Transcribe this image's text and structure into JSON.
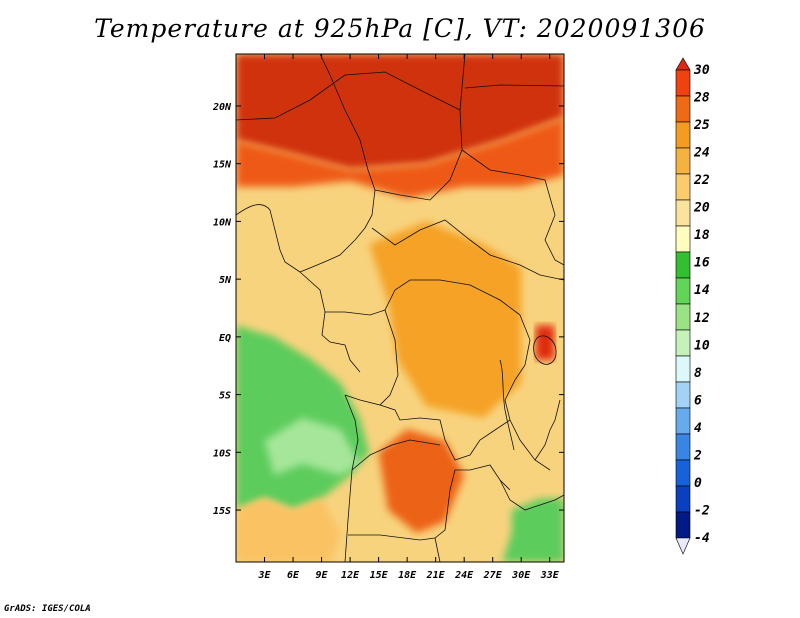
{
  "title": "Temperature at 925hPa [C], VT: 2020091306",
  "credit": "GrADS: IGES/COLA",
  "map": {
    "lon_range": [
      0,
      34.5
    ],
    "lat_range": [
      -19.5,
      24.5
    ],
    "x_ticks": [
      "3E",
      "6E",
      "9E",
      "12E",
      "15E",
      "18E",
      "21E",
      "24E",
      "27E",
      "30E",
      "33E"
    ],
    "y_ticks": [
      "20N",
      "15N",
      "10N",
      "5N",
      "EQ",
      "5S",
      "10S",
      "15S"
    ],
    "fill_regions": [
      {
        "name": "far-north-hot",
        "poly": [
          [
            0,
            24.5
          ],
          [
            34.5,
            24.5
          ],
          [
            34.5,
            19
          ],
          [
            28,
            17
          ],
          [
            20,
            15
          ],
          [
            12,
            14.5
          ],
          [
            5,
            16
          ],
          [
            0,
            17
          ]
        ],
        "color": "#d03010"
      },
      {
        "name": "sahel-warm",
        "poly": [
          [
            0,
            17
          ],
          [
            5,
            16
          ],
          [
            12,
            14.5
          ],
          [
            20,
            15
          ],
          [
            28,
            17
          ],
          [
            34.5,
            19
          ],
          [
            34.5,
            14
          ],
          [
            30,
            13
          ],
          [
            24,
            13
          ],
          [
            18,
            12
          ],
          [
            12,
            13.5
          ],
          [
            6,
            13
          ],
          [
            0,
            13
          ]
        ],
        "color": "#ee5a16"
      },
      {
        "name": "central-orange",
        "poly": [
          [
            14,
            8
          ],
          [
            20,
            10
          ],
          [
            26,
            8
          ],
          [
            30,
            6
          ],
          [
            30,
            -4
          ],
          [
            26,
            -7
          ],
          [
            20,
            -6
          ],
          [
            17,
            -2
          ],
          [
            16,
            3
          ]
        ],
        "color": "#f5a228"
      },
      {
        "name": "southern-hot",
        "poly": [
          [
            15,
            -10
          ],
          [
            18,
            -8
          ],
          [
            22,
            -9
          ],
          [
            24,
            -12
          ],
          [
            22,
            -16
          ],
          [
            19,
            -17
          ],
          [
            16,
            -15
          ]
        ],
        "color": "#ec6214"
      },
      {
        "name": "coast-green",
        "poly": [
          [
            0,
            1
          ],
          [
            4,
            0
          ],
          [
            8,
            -2
          ],
          [
            11,
            -4
          ],
          [
            13,
            -7
          ],
          [
            14,
            -10
          ],
          [
            12,
            -12
          ],
          [
            9,
            -14
          ],
          [
            6,
            -15
          ],
          [
            3,
            -14
          ],
          [
            0,
            -15
          ]
        ],
        "color": "#5ccc5c"
      },
      {
        "name": "coast-lightgreen",
        "poly": [
          [
            3,
            -9
          ],
          [
            7,
            -7
          ],
          [
            11,
            -8
          ],
          [
            13,
            -11
          ],
          [
            11,
            -12
          ],
          [
            7,
            -11
          ],
          [
            4,
            -12
          ]
        ],
        "color": "#a6e69a"
      },
      {
        "name": "sw-atlantic",
        "poly": [
          [
            0,
            -15
          ],
          [
            3,
            -14
          ],
          [
            6,
            -15
          ],
          [
            9,
            -14
          ],
          [
            11,
            -17
          ],
          [
            10,
            -19.5
          ],
          [
            0,
            -19.5
          ]
        ],
        "color": "#fac262"
      },
      {
        "name": "se-green",
        "poly": [
          [
            29,
            -15
          ],
          [
            32,
            -14
          ],
          [
            34.5,
            -14
          ],
          [
            34.5,
            -19.5
          ],
          [
            28,
            -19.5
          ],
          [
            29,
            -17
          ]
        ],
        "color": "#5ccc5c"
      },
      {
        "name": "lake-victoria-red",
        "poly": [
          [
            31.5,
            1
          ],
          [
            33.5,
            1
          ],
          [
            33.5,
            -2
          ],
          [
            31.5,
            -2
          ]
        ],
        "color": "#e02a10"
      }
    ]
  },
  "colorbar": {
    "labels": [
      "30",
      "28",
      "25",
      "24",
      "22",
      "20",
      "18",
      "16",
      "14",
      "12",
      "10",
      "8",
      "6",
      "4",
      "2",
      "0",
      "-2",
      "-4"
    ],
    "colors": [
      "#dd2818",
      "#f04210",
      "#ef6a14",
      "#f49b22",
      "#f6b240",
      "#facc6e",
      "#fce39c",
      "#fffcc0",
      "#32c030",
      "#62d458",
      "#9ae286",
      "#c6f2ba",
      "#dcf8f8",
      "#a4d2f6",
      "#68aaee",
      "#3a84e4",
      "#1662d8",
      "#0a40c0",
      "#001a86",
      "#eaeafa"
    ]
  }
}
